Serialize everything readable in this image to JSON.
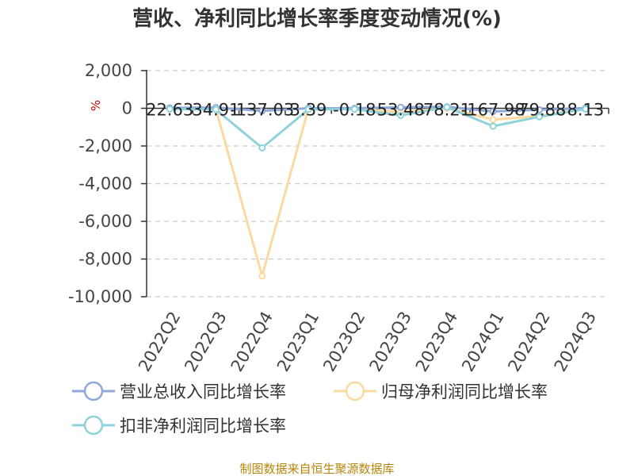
{
  "chart_data": {
    "type": "line",
    "title": "营收、净利同比增长率季度变动情况(%)",
    "ylabel": "%",
    "categories": [
      "2022Q2",
      "2022Q3",
      "2022Q4",
      "2023Q1",
      "2023Q2",
      "2023Q3",
      "2023Q4",
      "2024Q1",
      "2024Q2",
      "2024Q3"
    ],
    "ylim": [
      -10000,
      2000
    ],
    "yticks": [
      2000,
      0,
      -2000,
      -4000,
      -6000,
      -8000,
      -10000
    ],
    "ytick_labels": [
      "2,000",
      "0",
      "-2,000",
      "-4,000",
      "-6,000",
      "-8,000",
      "-10,000"
    ],
    "grid": true,
    "legend_position": "bottom",
    "series": [
      {
        "name": "营业总收入同比增长率",
        "color": "#8fa9dc",
        "values": [
          22.63,
          34.91,
          -137.03,
          3.39,
          -0.18,
          53.48,
          78.21,
          -167.98,
          -79.88,
          8.13
        ],
        "labels": [
          "22.63",
          "34.91",
          "-137.03",
          "3.39",
          "-0.18",
          "53.48",
          "78.21",
          "-167.98",
          "-79.88",
          "8.13"
        ]
      },
      {
        "name": "归母净利润同比增长率",
        "color": "#fcd9a1",
        "values": [
          -20,
          -40,
          -8900,
          -40,
          -40,
          -200,
          10,
          -600,
          -420,
          -20
        ]
      },
      {
        "name": "扣非净利润同比增长率",
        "color": "#8dd3d9",
        "values": [
          -40,
          -70,
          -2100,
          -60,
          -50,
          -380,
          60,
          -950,
          -450,
          -40
        ]
      }
    ]
  },
  "source_text": "制图数据来自恒生聚源数据库"
}
